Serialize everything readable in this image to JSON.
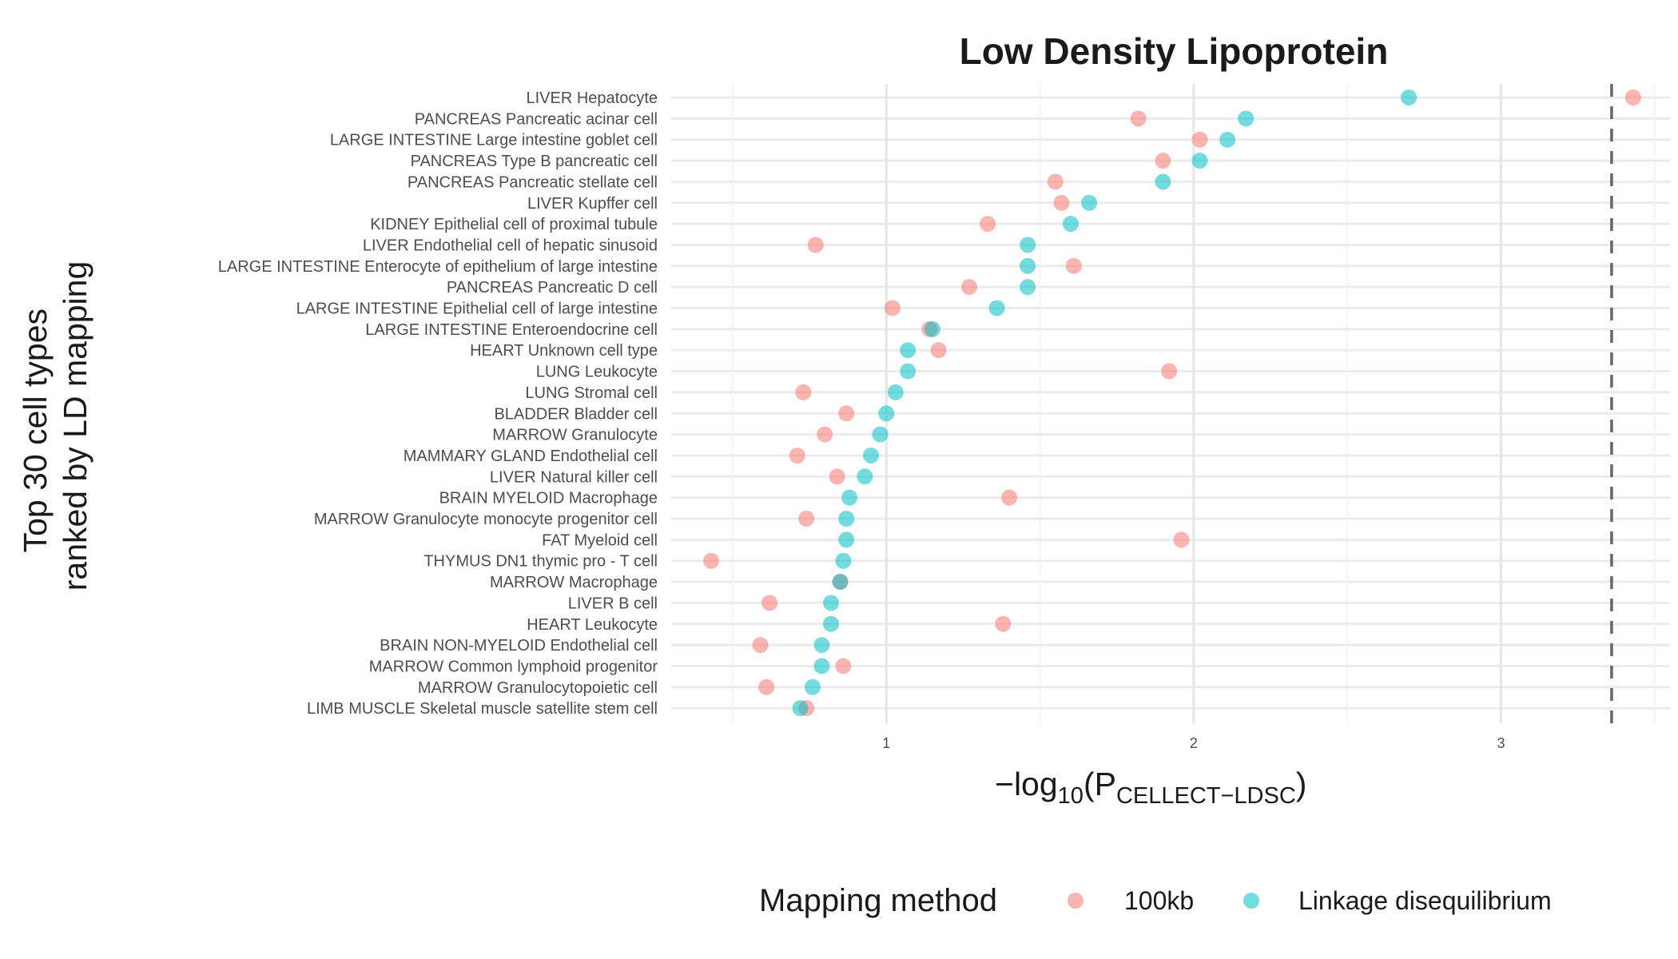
{
  "chart_data": {
    "type": "scatter",
    "title": "Low Density Lipoprotein",
    "xlabel": {
      "prefix": "−log",
      "sub1": "10",
      "mid": "(P",
      "sub2": "CELLECT−LDSC",
      "suffix": ")"
    },
    "ylabel": [
      "Top 30 cell types",
      "ranked by LD mapping"
    ],
    "xlim": [
      0.3,
      3.55
    ],
    "xticks": [
      1,
      2,
      3
    ],
    "reference_line_x": 3.36,
    "grid": true,
    "legend_position": "bottom",
    "legend": {
      "title": "Mapping method",
      "items": [
        {
          "label": "100kb",
          "color": "#f8766d"
        },
        {
          "label": "Linkage disequilibrium",
          "color": "#00bfc4"
        }
      ]
    },
    "categories": [
      "LIVER Hepatocyte",
      "PANCREAS Pancreatic acinar cell",
      "LARGE INTESTINE Large intestine goblet cell",
      "PANCREAS Type B pancreatic cell",
      "PANCREAS Pancreatic stellate cell",
      "LIVER Kupffer cell",
      "KIDNEY Epithelial cell of proximal tubule",
      "LIVER Endothelial cell of hepatic sinusoid",
      "LARGE INTESTINE Enterocyte of epithelium of large intestine",
      "PANCREAS Pancreatic D cell",
      "LARGE INTESTINE Epithelial cell of large intestine",
      "LARGE INTESTINE Enteroendocrine cell",
      "HEART Unknown cell type",
      "LUNG Leukocyte",
      "LUNG Stromal cell",
      "BLADDER Bladder cell",
      "MARROW Granulocyte",
      "MAMMARY GLAND Endothelial cell",
      "LIVER Natural killer cell",
      "BRAIN MYELOID Macrophage",
      "MARROW Granulocyte monocyte progenitor cell",
      "FAT Myeloid cell",
      "THYMUS DN1 thymic pro - T cell",
      "MARROW Macrophage",
      "LIVER B cell",
      "HEART Leukocyte",
      "BRAIN NON-MYELOID Endothelial cell",
      "MARROW Common lymphoid progenitor",
      "MARROW Granulocytopoietic cell",
      "LIMB MUSCLE Skeletal muscle satellite stem cell"
    ],
    "series": [
      {
        "name": "100kb",
        "color": "#f8766d",
        "values": [
          3.43,
          1.82,
          2.02,
          1.9,
          1.55,
          1.57,
          1.33,
          0.77,
          1.61,
          1.27,
          1.02,
          1.14,
          1.17,
          1.92,
          0.73,
          0.87,
          0.8,
          0.71,
          0.84,
          1.4,
          0.74,
          1.96,
          0.43,
          0.85,
          0.62,
          1.38,
          0.59,
          0.86,
          0.61,
          0.74
        ]
      },
      {
        "name": "Linkage disequilibrium",
        "color": "#00bfc4",
        "values": [
          2.7,
          2.17,
          2.11,
          2.02,
          1.9,
          1.66,
          1.6,
          1.46,
          1.46,
          1.46,
          1.36,
          1.15,
          1.07,
          1.07,
          1.03,
          1.0,
          0.98,
          0.95,
          0.93,
          0.88,
          0.87,
          0.87,
          0.86,
          0.85,
          0.82,
          0.82,
          0.79,
          0.79,
          0.76,
          0.72
        ]
      }
    ]
  }
}
